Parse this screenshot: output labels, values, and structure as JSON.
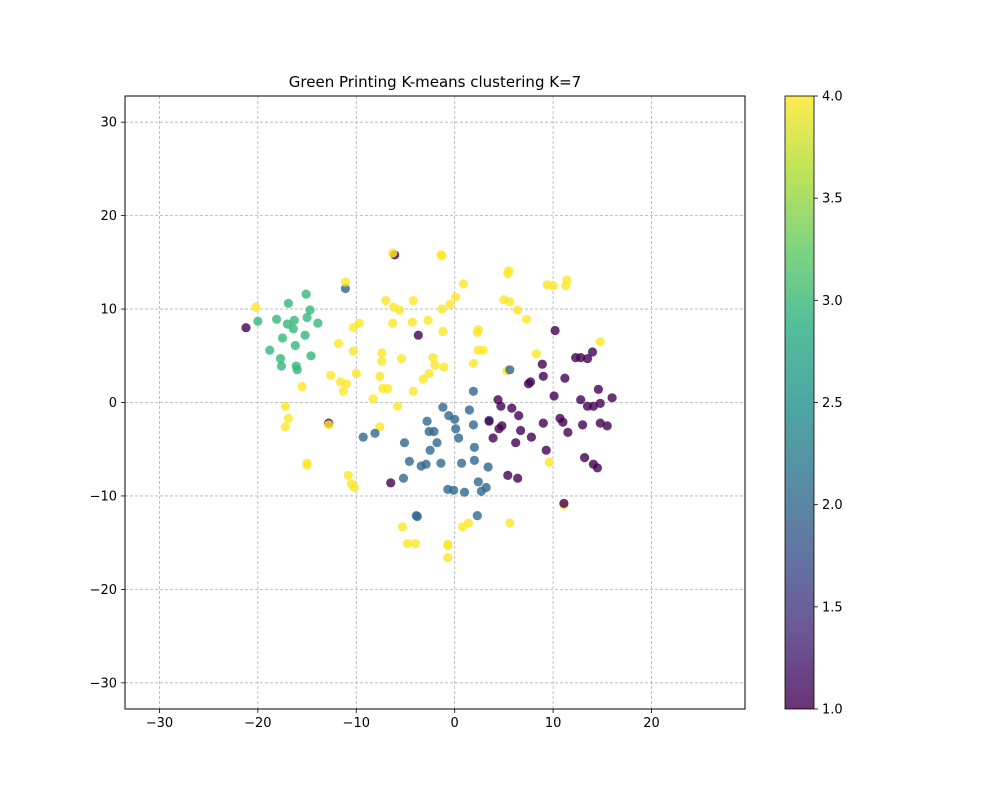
{
  "chart_data": {
    "type": "scatter",
    "title": "Green Printing  K-means clustering K=7",
    "xlabel": "",
    "ylabel": "",
    "xlim": [
      -33.5,
      29.5
    ],
    "ylim": [
      -32.8,
      32.8
    ],
    "xticks": [
      -30,
      -20,
      -10,
      0,
      10,
      20
    ],
    "xtick_labels": [
      "−30",
      "−20",
      "−10",
      "0",
      "10",
      "20"
    ],
    "yticks": [
      -30,
      -20,
      -10,
      0,
      10,
      20,
      30
    ],
    "ytick_labels": [
      "−30",
      "−20",
      "−10",
      "0",
      "10",
      "20",
      "30"
    ],
    "grid": true,
    "grid_style": "dashed",
    "colormap": "viridis",
    "marker_alpha": 0.8,
    "colorbar": {
      "range": [
        1.0,
        4.0
      ],
      "ticks": [
        1.0,
        1.5,
        2.0,
        2.5,
        3.0,
        3.5,
        4.0
      ],
      "tick_labels": [
        "1.0",
        "1.5",
        "2.0",
        "2.5",
        "3.0",
        "3.5",
        "4.0"
      ]
    },
    "cluster_colors": {
      "1": "#440154",
      "2": "#31688e",
      "3": "#35b779",
      "4": "#fde725"
    },
    "points": [
      [
        -21.2,
        8.0,
        1
      ],
      [
        -6.1,
        15.8,
        1
      ],
      [
        -12.8,
        -2.2,
        1
      ],
      [
        -11.1,
        12.2,
        2
      ],
      [
        -20.2,
        10.2,
        4
      ],
      [
        -20.0,
        8.7,
        3
      ],
      [
        -18.8,
        5.6,
        3
      ],
      [
        -18.1,
        8.9,
        3
      ],
      [
        -17.7,
        4.7,
        3
      ],
      [
        -17.6,
        3.9,
        3
      ],
      [
        -17.5,
        6.9,
        3
      ],
      [
        -17.0,
        8.4,
        3
      ],
      [
        -16.9,
        10.6,
        3
      ],
      [
        -16.4,
        7.9,
        3
      ],
      [
        -16.3,
        8.8,
        3
      ],
      [
        -16.2,
        6.1,
        3
      ],
      [
        -16.1,
        3.9,
        3
      ],
      [
        -16.0,
        3.5,
        3
      ],
      [
        -15.2,
        7.2,
        3
      ],
      [
        -15.1,
        11.6,
        3
      ],
      [
        -15.0,
        9.1,
        3
      ],
      [
        -14.7,
        9.9,
        3
      ],
      [
        -14.6,
        5.0,
        3
      ],
      [
        -13.9,
        8.5,
        3
      ],
      [
        -17.2,
        -0.4,
        4
      ],
      [
        -17.2,
        -2.6,
        4
      ],
      [
        -16.9,
        -1.7,
        4
      ],
      [
        -15.5,
        1.7,
        4
      ],
      [
        -15.0,
        -6.5,
        4
      ],
      [
        -15.0,
        -6.7,
        4
      ],
      [
        -12.8,
        -2.4,
        4
      ],
      [
        -12.6,
        2.9,
        4
      ],
      [
        -11.8,
        6.3,
        4
      ],
      [
        -11.6,
        2.2,
        4
      ],
      [
        -11.3,
        1.2,
        4
      ],
      [
        -11.1,
        12.9,
        4
      ],
      [
        -11.0,
        2.0,
        4
      ],
      [
        -10.8,
        -7.8,
        4
      ],
      [
        -10.5,
        -8.7,
        4
      ],
      [
        -10.3,
        5.5,
        4
      ],
      [
        -10.3,
        8.0,
        4
      ],
      [
        -10.2,
        -9.1,
        4
      ],
      [
        -10.0,
        3.1,
        4
      ],
      [
        -9.7,
        8.5,
        4
      ],
      [
        -8.3,
        0.4,
        4
      ],
      [
        -7.6,
        -2.6,
        4
      ],
      [
        -7.6,
        2.8,
        4
      ],
      [
        -7.4,
        4.4,
        4
      ],
      [
        -7.4,
        5.3,
        4
      ],
      [
        -7.3,
        1.5,
        4
      ],
      [
        -7.0,
        10.9,
        4
      ],
      [
        -6.8,
        1.5,
        4
      ],
      [
        -6.3,
        16.0,
        4
      ],
      [
        -6.3,
        8.5,
        4
      ],
      [
        -6.2,
        10.2,
        4
      ],
      [
        -5.8,
        -0.4,
        4
      ],
      [
        -5.6,
        9.9,
        4
      ],
      [
        -5.4,
        4.7,
        4
      ],
      [
        -5.3,
        -13.3,
        4
      ],
      [
        -4.8,
        -15.1,
        4
      ],
      [
        -4.3,
        8.6,
        4
      ],
      [
        -4.2,
        10.9,
        4
      ],
      [
        -4.2,
        1.2,
        4
      ],
      [
        -4.0,
        -15.1,
        4
      ],
      [
        -3.2,
        2.5,
        4
      ],
      [
        -2.7,
        8.8,
        4
      ],
      [
        -2.6,
        3.1,
        4
      ],
      [
        -2.2,
        4.8,
        4
      ],
      [
        -2.0,
        4.0,
        4
      ],
      [
        -1.4,
        15.8,
        4
      ],
      [
        -1.3,
        15.7,
        4
      ],
      [
        -1.3,
        10.0,
        4
      ],
      [
        -1.2,
        7.6,
        4
      ],
      [
        -1.1,
        3.8,
        4
      ],
      [
        -0.7,
        -15.2,
        4
      ],
      [
        -0.7,
        -15.3,
        4
      ],
      [
        -0.7,
        -16.6,
        4
      ],
      [
        -0.5,
        10.5,
        4
      ],
      [
        0.1,
        11.3,
        4
      ],
      [
        0.8,
        -13.3,
        4
      ],
      [
        0.9,
        12.7,
        4
      ],
      [
        1.4,
        -12.9,
        4
      ],
      [
        1.9,
        4.2,
        4
      ],
      [
        2.3,
        7.5,
        4
      ],
      [
        2.4,
        7.8,
        4
      ],
      [
        2.4,
        5.6,
        4
      ],
      [
        2.9,
        5.6,
        4
      ],
      [
        5.0,
        11.0,
        4
      ],
      [
        5.4,
        13.8,
        4
      ],
      [
        5.5,
        14.1,
        4
      ],
      [
        5.6,
        10.8,
        4
      ],
      [
        5.6,
        -12.9,
        4
      ],
      [
        5.3,
        3.4,
        4
      ],
      [
        6.4,
        9.9,
        4
      ],
      [
        7.3,
        8.9,
        4
      ],
      [
        8.3,
        5.2,
        4
      ],
      [
        9.4,
        12.6,
        4
      ],
      [
        9.6,
        -6.4,
        4
      ],
      [
        10.0,
        12.5,
        4
      ],
      [
        11.1,
        -11.0,
        4
      ],
      [
        11.3,
        12.5,
        4
      ],
      [
        11.4,
        13.1,
        4
      ],
      [
        14.8,
        6.5,
        4
      ],
      [
        -9.3,
        -3.7,
        2
      ],
      [
        -8.1,
        -3.3,
        2
      ],
      [
        -5.1,
        -4.3,
        2
      ],
      [
        -5.2,
        -8.1,
        2
      ],
      [
        -4.6,
        -6.3,
        2
      ],
      [
        -3.9,
        -12.1,
        2
      ],
      [
        -3.8,
        -12.2,
        2
      ],
      [
        -3.4,
        -6.8,
        2
      ],
      [
        -2.9,
        -6.6,
        2
      ],
      [
        -2.8,
        -2.0,
        2
      ],
      [
        -2.6,
        -3.1,
        2
      ],
      [
        -2.5,
        -5.1,
        2
      ],
      [
        -2.1,
        -3.1,
        2
      ],
      [
        -1.8,
        -4.3,
        2
      ],
      [
        -1.4,
        -6.5,
        2
      ],
      [
        -1.2,
        -0.5,
        2
      ],
      [
        -0.7,
        -9.3,
        2
      ],
      [
        -0.6,
        -1.4,
        2
      ],
      [
        -0.1,
        -9.4,
        2
      ],
      [
        0.0,
        -1.8,
        2
      ],
      [
        0.1,
        -2.8,
        2
      ],
      [
        0.4,
        -3.8,
        2
      ],
      [
        0.7,
        -6.5,
        2
      ],
      [
        1.0,
        -9.6,
        2
      ],
      [
        1.5,
        -0.8,
        2
      ],
      [
        1.9,
        1.2,
        2
      ],
      [
        1.9,
        -2.4,
        2
      ],
      [
        2.0,
        -6.2,
        2
      ],
      [
        2.0,
        -4.8,
        2
      ],
      [
        2.3,
        -12.1,
        2
      ],
      [
        2.4,
        -8.5,
        2
      ],
      [
        2.7,
        -9.5,
        2
      ],
      [
        3.2,
        -9.1,
        2
      ],
      [
        3.4,
        -6.9,
        2
      ],
      [
        3.5,
        -1.9,
        2
      ],
      [
        5.6,
        3.5,
        2
      ],
      [
        -3.7,
        7.2,
        1
      ],
      [
        -6.5,
        -8.6,
        1
      ],
      [
        3.5,
        -2.0,
        1
      ],
      [
        3.9,
        -3.8,
        1
      ],
      [
        4.4,
        0.3,
        1
      ],
      [
        4.5,
        -2.8,
        1
      ],
      [
        4.7,
        -0.4,
        1
      ],
      [
        4.8,
        -2.5,
        1
      ],
      [
        5.4,
        -7.8,
        1
      ],
      [
        5.8,
        -0.6,
        1
      ],
      [
        6.2,
        -4.3,
        1
      ],
      [
        6.4,
        -8.1,
        1
      ],
      [
        6.5,
        -1.4,
        1
      ],
      [
        6.7,
        -3.0,
        1
      ],
      [
        7.5,
        2.0,
        1
      ],
      [
        7.7,
        2.2,
        1
      ],
      [
        7.8,
        -3.7,
        1
      ],
      [
        8.9,
        4.1,
        1
      ],
      [
        9.0,
        2.8,
        1
      ],
      [
        9.0,
        -2.2,
        1
      ],
      [
        9.3,
        -5.1,
        1
      ],
      [
        10.1,
        0.7,
        1
      ],
      [
        10.2,
        7.7,
        1
      ],
      [
        10.7,
        -1.7,
        1
      ],
      [
        11.0,
        -2.1,
        1
      ],
      [
        11.1,
        -10.8,
        1
      ],
      [
        11.2,
        2.6,
        1
      ],
      [
        11.5,
        -3.2,
        1
      ],
      [
        12.3,
        4.8,
        1
      ],
      [
        12.8,
        0.3,
        1
      ],
      [
        12.8,
        4.8,
        1
      ],
      [
        13.0,
        -2.4,
        1
      ],
      [
        13.2,
        -5.9,
        1
      ],
      [
        13.5,
        -0.4,
        1
      ],
      [
        13.5,
        4.7,
        1
      ],
      [
        14.0,
        5.4,
        1
      ],
      [
        14.1,
        -0.4,
        1
      ],
      [
        14.1,
        -6.6,
        1
      ],
      [
        14.5,
        -7.0,
        1
      ],
      [
        14.6,
        1.4,
        1
      ],
      [
        14.8,
        -0.1,
        1
      ],
      [
        14.8,
        -2.2,
        1
      ],
      [
        15.5,
        -2.5,
        1
      ],
      [
        16.0,
        0.5,
        1
      ]
    ]
  }
}
